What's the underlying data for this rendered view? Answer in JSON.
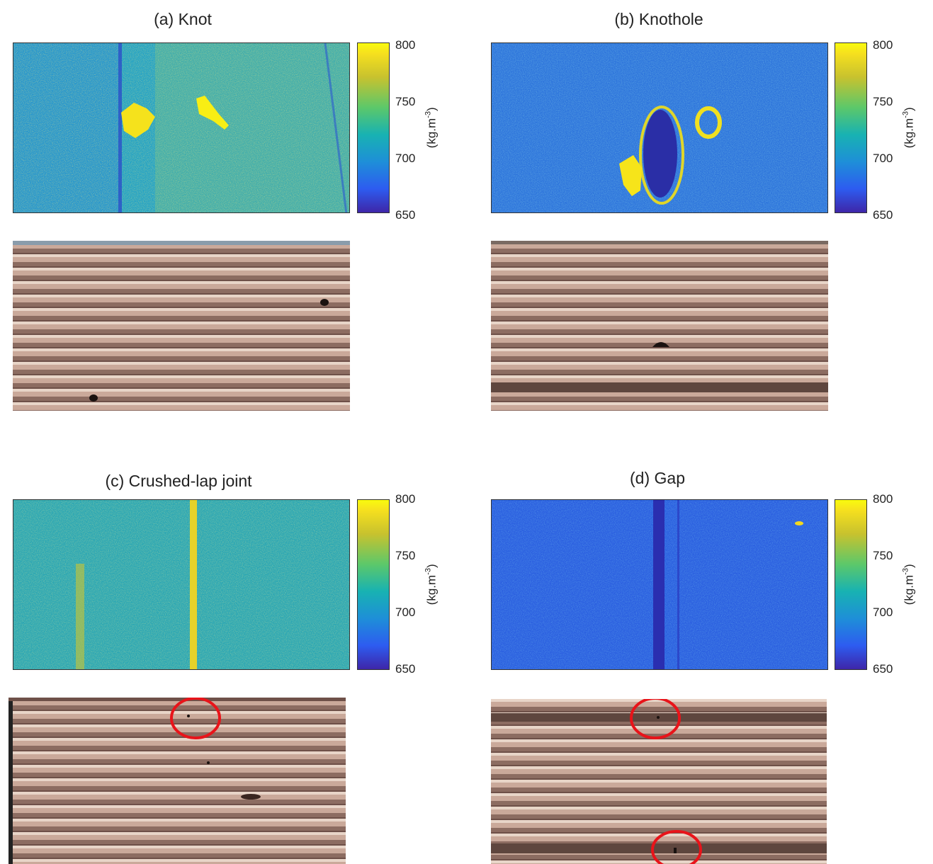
{
  "colorbar": {
    "ticks": [
      "800",
      "750",
      "700",
      "650"
    ],
    "unit": "(kg.m",
    "unit_sup": "-3",
    "unit_close": ")"
  },
  "panels": [
    {
      "title": "(a)  Knot"
    },
    {
      "title": "(b)  Knothole"
    },
    {
      "title": "(c) Crushed-lap joint"
    },
    {
      "title": "(d) Gap"
    }
  ]
}
